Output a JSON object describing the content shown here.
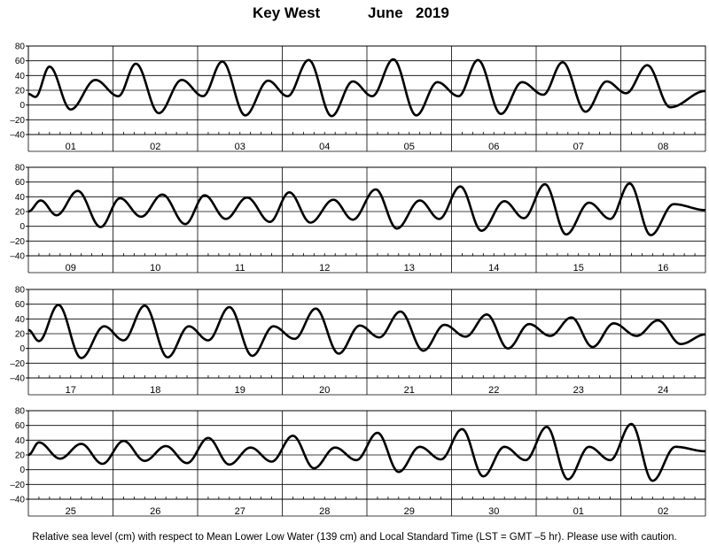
{
  "title": {
    "location": "Key West",
    "month": "June",
    "year": "2019"
  },
  "footer": "Relative sea level (cm) with respect to Mean Lower Low Water (139 cm) and Local Standard Time (LST = GMT –5 hr). Please use with caution.",
  "chart_data": {
    "type": "line",
    "title": "Key West June 2019",
    "ylim": [
      -40,
      80
    ],
    "yticks": [
      "80",
      "60",
      "40",
      "20",
      "0",
      "–20",
      "–40"
    ],
    "ytick_values": [
      80,
      60,
      40,
      20,
      0,
      -20,
      -40
    ],
    "grid": true,
    "line_color": "#000000",
    "panels": [
      {
        "days": [
          "01",
          "02",
          "03",
          "04",
          "05",
          "06",
          "07",
          "08"
        ],
        "extrema": [
          [
            0,
            15
          ],
          [
            2,
            11
          ],
          [
            6,
            52
          ],
          [
            12,
            -6
          ],
          [
            19,
            34
          ],
          [
            25.5,
            12
          ],
          [
            30.5,
            56
          ],
          [
            37,
            -11
          ],
          [
            43.5,
            34
          ],
          [
            49.5,
            12
          ],
          [
            55,
            59
          ],
          [
            61.5,
            -14
          ],
          [
            68,
            33
          ],
          [
            73.5,
            12
          ],
          [
            79.5,
            61
          ],
          [
            86,
            -15
          ],
          [
            92,
            32
          ],
          [
            97.5,
            12
          ],
          [
            103.5,
            62
          ],
          [
            110,
            -14
          ],
          [
            116,
            31
          ],
          [
            122,
            12
          ],
          [
            127.5,
            61
          ],
          [
            134,
            -12
          ],
          [
            140,
            31
          ],
          [
            146,
            14
          ],
          [
            151.5,
            58
          ],
          [
            158,
            -9
          ],
          [
            164,
            32
          ],
          [
            169.5,
            16
          ],
          [
            175.5,
            54
          ],
          [
            182,
            -3
          ],
          [
            192,
            19
          ]
        ]
      },
      {
        "days": [
          "09",
          "10",
          "11",
          "12",
          "13",
          "14",
          "15",
          "16"
        ],
        "extrema": [
          [
            0,
            20
          ],
          [
            3.5,
            35
          ],
          [
            8,
            15
          ],
          [
            14,
            48
          ],
          [
            20.5,
            -1
          ],
          [
            26,
            38
          ],
          [
            32,
            13
          ],
          [
            38,
            43
          ],
          [
            44.5,
            3
          ],
          [
            50,
            42
          ],
          [
            56,
            10
          ],
          [
            62,
            39
          ],
          [
            68.5,
            6
          ],
          [
            74,
            46
          ],
          [
            80,
            5
          ],
          [
            86.5,
            36
          ],
          [
            92,
            9
          ],
          [
            98.5,
            50
          ],
          [
            104.5,
            -3
          ],
          [
            111,
            35
          ],
          [
            116.5,
            10
          ],
          [
            122.5,
            54
          ],
          [
            128.5,
            -6
          ],
          [
            135,
            34
          ],
          [
            140.5,
            11
          ],
          [
            146.5,
            57
          ],
          [
            152.5,
            -11
          ],
          [
            159,
            32
          ],
          [
            165,
            10
          ],
          [
            170.5,
            58
          ],
          [
            176.5,
            -12
          ],
          [
            183,
            30
          ],
          [
            192,
            22
          ]
        ]
      },
      {
        "days": [
          "17",
          "18",
          "19",
          "20",
          "21",
          "22",
          "23",
          "24"
        ],
        "extrema": [
          [
            0,
            25
          ],
          [
            3,
            10
          ],
          [
            8.5,
            59
          ],
          [
            15,
            -13
          ],
          [
            21.5,
            30
          ],
          [
            27,
            11
          ],
          [
            33,
            58
          ],
          [
            39.5,
            -12
          ],
          [
            45.5,
            30
          ],
          [
            51,
            11
          ],
          [
            57,
            56
          ],
          [
            63.5,
            -10
          ],
          [
            69.5,
            30
          ],
          [
            75.5,
            13
          ],
          [
            81.5,
            54
          ],
          [
            88,
            -7
          ],
          [
            94,
            31
          ],
          [
            99.5,
            15
          ],
          [
            105.5,
            50
          ],
          [
            112,
            -3
          ],
          [
            118,
            32
          ],
          [
            124,
            16
          ],
          [
            130,
            46
          ],
          [
            136,
            0
          ],
          [
            142,
            33
          ],
          [
            148,
            17
          ],
          [
            154,
            42
          ],
          [
            160,
            2
          ],
          [
            166,
            34
          ],
          [
            172.5,
            17
          ],
          [
            178.5,
            38
          ],
          [
            185,
            6
          ],
          [
            192,
            19
          ]
        ]
      },
      {
        "days": [
          "25",
          "26",
          "27",
          "28",
          "29",
          "30",
          "01",
          "02"
        ],
        "extrema": [
          [
            0,
            20
          ],
          [
            3,
            37
          ],
          [
            9,
            15
          ],
          [
            15,
            35
          ],
          [
            21,
            8
          ],
          [
            27,
            39
          ],
          [
            33,
            12
          ],
          [
            39,
            32
          ],
          [
            45,
            9
          ],
          [
            51,
            43
          ],
          [
            57,
            7
          ],
          [
            63,
            30
          ],
          [
            69,
            11
          ],
          [
            75,
            46
          ],
          [
            81,
            2
          ],
          [
            87,
            30
          ],
          [
            93,
            13
          ],
          [
            99,
            50
          ],
          [
            105,
            -3
          ],
          [
            111,
            31
          ],
          [
            117,
            14
          ],
          [
            123,
            55
          ],
          [
            129,
            -9
          ],
          [
            135,
            31
          ],
          [
            141,
            13
          ],
          [
            147,
            58
          ],
          [
            153,
            -13
          ],
          [
            159,
            31
          ],
          [
            165,
            13
          ],
          [
            171,
            62
          ],
          [
            177,
            -15
          ],
          [
            183.5,
            31
          ],
          [
            192,
            25
          ]
        ]
      }
    ]
  }
}
